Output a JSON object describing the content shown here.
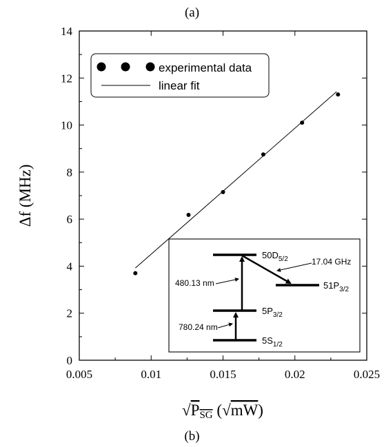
{
  "panel_labels": {
    "top": "(a)",
    "bottom": "(b)"
  },
  "chart_data": {
    "type": "scatter",
    "xlabel": {
      "sqrt_symbol": "√",
      "main": "P",
      "sub": "SG",
      "unit_sqrt": "√",
      "unit": "mW"
    },
    "ylabel": {
      "main": "Δf",
      "unit": "(MHz)"
    },
    "xlim": [
      0.005,
      0.025
    ],
    "ylim": [
      0,
      14
    ],
    "xticks": [
      0.005,
      0.01,
      0.015,
      0.02,
      0.025
    ],
    "xtick_labels": [
      "0.005",
      "0.01",
      "0.015",
      "0.02",
      "0.025"
    ],
    "yticks": [
      0,
      2,
      4,
      6,
      8,
      10,
      12,
      14
    ],
    "ytick_labels": [
      "0",
      "2",
      "4",
      "6",
      "8",
      "10",
      "12",
      "14"
    ],
    "grid": false,
    "legend_position": "top-left",
    "series": [
      {
        "name": "experimental data",
        "style": "markers",
        "x": [
          0.0089,
          0.0126,
          0.015,
          0.0178,
          0.0205,
          0.023
        ],
        "y": [
          3.7,
          6.18,
          7.15,
          8.75,
          10.1,
          11.3
        ]
      },
      {
        "name": "linear fit",
        "style": "line",
        "x": [
          0.0089,
          0.0229
        ],
        "y": [
          3.92,
          11.42
        ]
      }
    ],
    "inset": {
      "levels": [
        {
          "id": "50D",
          "main": "50D",
          "sub": "5/2"
        },
        {
          "id": "5P",
          "main": "5P",
          "sub": "3/2"
        },
        {
          "id": "5S",
          "main": "5S",
          "sub": "1/2"
        },
        {
          "id": "51P",
          "main": "51P",
          "sub": "3/2"
        }
      ],
      "transitions": [
        {
          "label": "780.24 nm"
        },
        {
          "label": "480.13 nm"
        },
        {
          "label": "17.04 GHz"
        }
      ]
    }
  }
}
